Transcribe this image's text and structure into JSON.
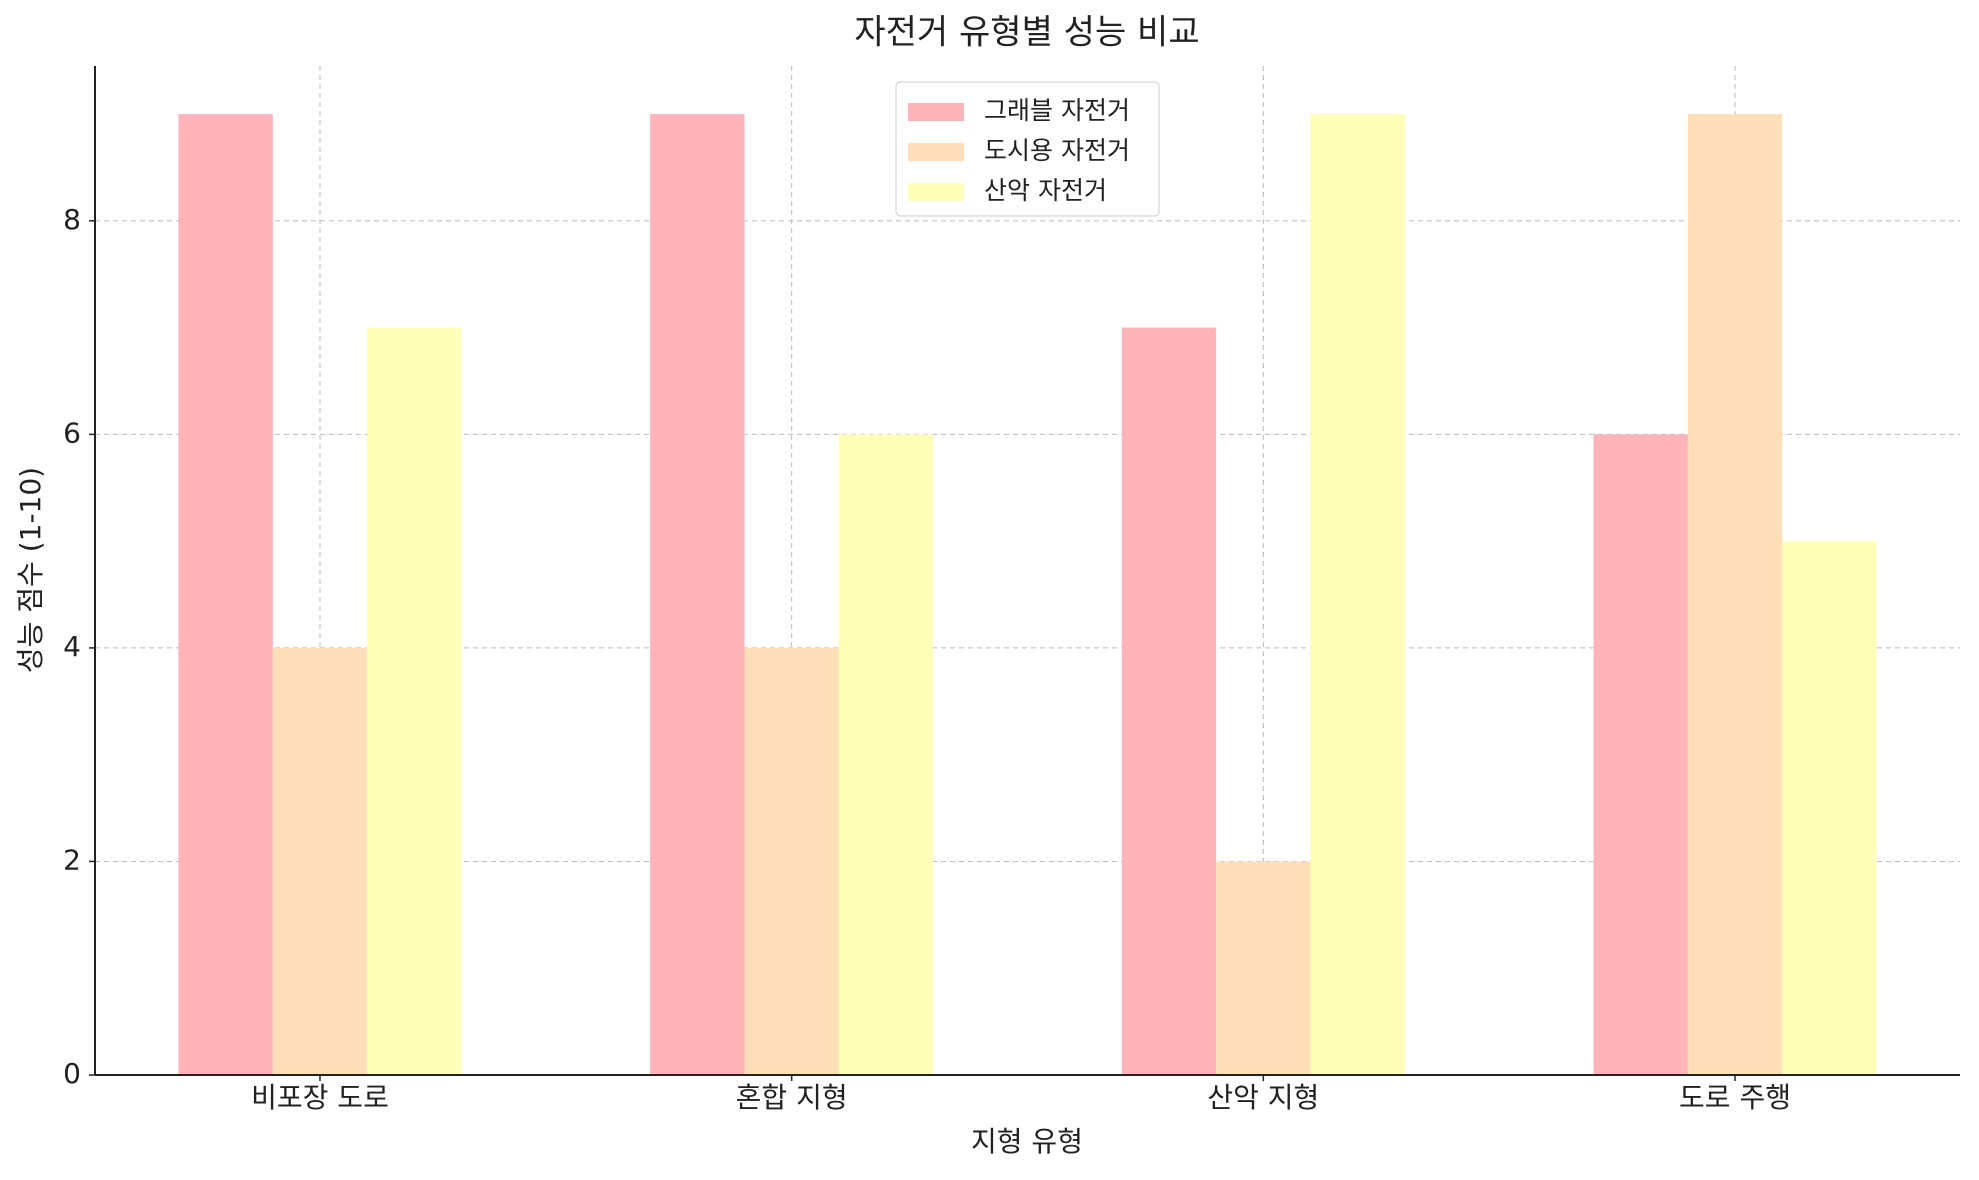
{
  "chart_data": {
    "type": "bar",
    "title": "자전거 유형별 성능 비교",
    "x_label": "지형 유형",
    "y_label": "성능 점수 (1-10)",
    "categories": [
      "비포장 도로",
      "혼합 지형",
      "산악 지형",
      "도로 주행"
    ],
    "series": [
      {
        "name": "그래블 자전거",
        "color": "#ffb3ba",
        "values": [
          9,
          9,
          7,
          6
        ]
      },
      {
        "name": "도시용 자전거",
        "color": "#ffdfba",
        "values": [
          4,
          4,
          2,
          9
        ]
      },
      {
        "name": "산악 자전거",
        "color": "#ffffba",
        "values": [
          7,
          6,
          9,
          5
        ]
      }
    ],
    "ylim": [
      0,
      9.45
    ],
    "yticks": [
      0,
      2,
      4,
      6,
      8
    ],
    "grid": true,
    "legend": "upper center"
  }
}
